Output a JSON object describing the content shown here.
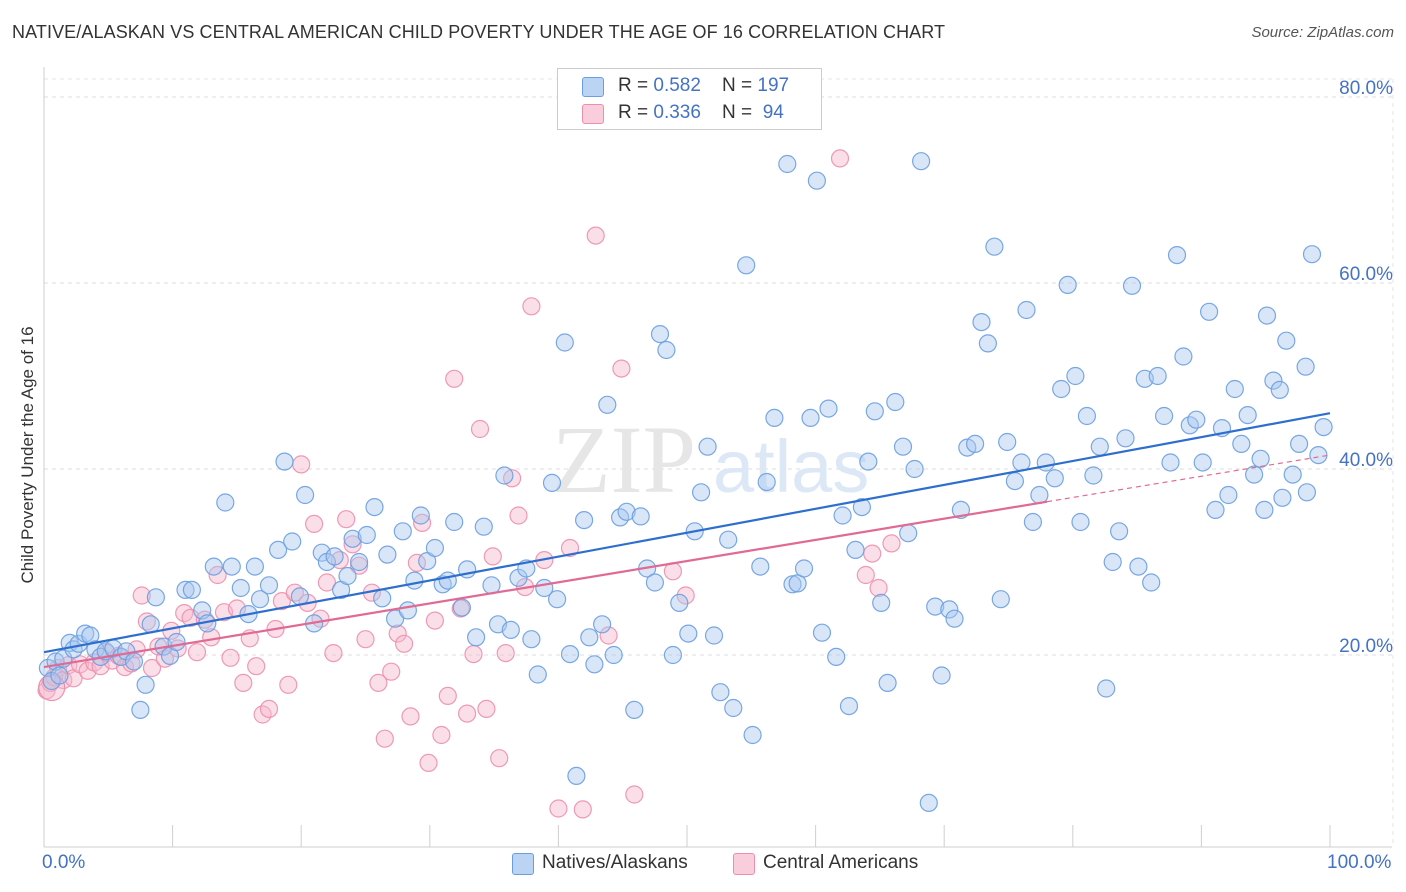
{
  "header": {
    "title": "NATIVE/ALASKAN VS CENTRAL AMERICAN CHILD POVERTY UNDER THE AGE OF 16 CORRELATION CHART",
    "source": "Source: ZipAtlas.com"
  },
  "watermark": {
    "text_zip": "ZIP",
    "text_atlas": "atlas"
  },
  "legend": {
    "rows": [
      {
        "r_label": "R = ",
        "r_value": "0.582",
        "n_label": "N = ",
        "n_value": "197",
        "color": "#a9c8f0"
      },
      {
        "r_label": "R = ",
        "r_value": "0.336",
        "n_label": "N = ",
        "n_value": " 94",
        "color": "#f6b8cb"
      }
    ]
  },
  "bottom_legend": [
    {
      "label": "Natives/Alaskans",
      "color": "#a9c8f0"
    },
    {
      "label": "Central Americans",
      "color": "#f6b8cb"
    }
  ],
  "colors": {
    "blue_line": "#2e6fce",
    "pink_line": "#e06a94",
    "blue_fill": "#a9c8f0",
    "pink_fill": "#f6b8cb",
    "blue_stroke": "#6a9ee0",
    "pink_stroke": "#ec8fae",
    "tick_label": "#4472c4"
  },
  "chart_data": {
    "type": "scatter",
    "title": "NATIVE/ALASKAN VS CENTRAL AMERICAN CHILD POVERTY UNDER THE AGE OF 16 CORRELATION CHART",
    "xlabel": "",
    "ylabel": "Child Poverty Under the Age of 16",
    "xlim": [
      0,
      100
    ],
    "ylim": [
      0,
      85
    ],
    "x_tick_labels": [
      "0.0%",
      "100.0%"
    ],
    "y_ticks": [
      20,
      40,
      60,
      80
    ],
    "y_tick_labels": [
      "20.0%",
      "40.0%",
      "60.0%",
      "80.0%"
    ],
    "grid": true,
    "legend_position": "top-center",
    "series": [
      {
        "name": "Natives/Alaskans",
        "trend": {
          "x": [
            0,
            100
          ],
          "y": [
            20.3,
            46.0
          ],
          "extrapolated_to": 100
        },
        "points": [
          [
            0.3,
            18.6
          ],
          [
            0.6,
            17.2
          ],
          [
            0.9,
            19.3
          ],
          [
            1.2,
            17.8
          ],
          [
            1.5,
            19.6
          ],
          [
            2.0,
            21.3
          ],
          [
            2.3,
            20.6
          ],
          [
            2.7,
            21.2
          ],
          [
            3.2,
            22.3
          ],
          [
            3.6,
            22.1
          ],
          [
            4.0,
            20.6
          ],
          [
            4.4,
            19.8
          ],
          [
            4.8,
            20.4
          ],
          [
            5.4,
            20.7
          ],
          [
            6.0,
            19.8
          ],
          [
            6.4,
            20.4
          ],
          [
            7.0,
            19.3
          ],
          [
            7.5,
            14.1
          ],
          [
            7.9,
            16.8
          ],
          [
            8.3,
            23.3
          ],
          [
            8.7,
            26.2
          ],
          [
            9.3,
            20.9
          ],
          [
            9.8,
            19.9
          ],
          [
            10.3,
            21.4
          ],
          [
            11.0,
            27.0
          ],
          [
            11.5,
            27.0
          ],
          [
            12.3,
            24.8
          ],
          [
            12.7,
            23.4
          ],
          [
            13.2,
            29.5
          ],
          [
            14.1,
            36.4
          ],
          [
            14.6,
            29.5
          ],
          [
            15.3,
            27.2
          ],
          [
            15.9,
            24.4
          ],
          [
            16.4,
            29.5
          ],
          [
            16.8,
            26.0
          ],
          [
            17.5,
            27.5
          ],
          [
            18.2,
            31.3
          ],
          [
            18.7,
            40.8
          ],
          [
            19.3,
            32.2
          ],
          [
            19.9,
            26.3
          ],
          [
            20.3,
            37.2
          ],
          [
            21.0,
            23.4
          ],
          [
            21.6,
            31.0
          ],
          [
            22.0,
            30.0
          ],
          [
            22.6,
            30.6
          ],
          [
            23.1,
            27.0
          ],
          [
            23.6,
            28.5
          ],
          [
            24.0,
            32.5
          ],
          [
            24.5,
            30.0
          ],
          [
            25.1,
            32.9
          ],
          [
            25.7,
            35.9
          ],
          [
            26.3,
            26.1
          ],
          [
            26.7,
            30.8
          ],
          [
            27.3,
            23.9
          ],
          [
            27.9,
            33.3
          ],
          [
            28.3,
            24.8
          ],
          [
            28.8,
            28.0
          ],
          [
            29.3,
            35.0
          ],
          [
            29.8,
            30.1
          ],
          [
            30.4,
            31.5
          ],
          [
            31.0,
            27.6
          ],
          [
            31.4,
            28.0
          ],
          [
            31.9,
            34.3
          ],
          [
            32.5,
            25.1
          ],
          [
            32.9,
            29.2
          ],
          [
            33.6,
            21.9
          ],
          [
            34.2,
            33.8
          ],
          [
            34.8,
            27.5
          ],
          [
            35.3,
            23.3
          ],
          [
            35.8,
            39.3
          ],
          [
            36.3,
            22.7
          ],
          [
            36.9,
            28.3
          ],
          [
            37.5,
            29.3
          ],
          [
            37.9,
            21.7
          ],
          [
            38.4,
            17.9
          ],
          [
            38.9,
            27.2
          ],
          [
            39.5,
            38.5
          ],
          [
            39.9,
            26.0
          ],
          [
            40.5,
            53.6
          ],
          [
            40.9,
            20.1
          ],
          [
            41.4,
            7.0
          ],
          [
            42.0,
            34.5
          ],
          [
            42.4,
            21.9
          ],
          [
            42.8,
            19.0
          ],
          [
            43.4,
            23.3
          ],
          [
            43.8,
            46.9
          ],
          [
            44.3,
            20.0
          ],
          [
            44.8,
            34.8
          ],
          [
            45.3,
            35.4
          ],
          [
            45.9,
            14.1
          ],
          [
            46.4,
            34.9
          ],
          [
            46.9,
            29.3
          ],
          [
            47.5,
            27.8
          ],
          [
            47.9,
            54.5
          ],
          [
            48.4,
            52.8
          ],
          [
            48.9,
            20.0
          ],
          [
            49.4,
            25.6
          ],
          [
            50.1,
            22.3
          ],
          [
            50.6,
            33.3
          ],
          [
            51.1,
            37.5
          ],
          [
            51.6,
            42.4
          ],
          [
            52.1,
            22.1
          ],
          [
            52.6,
            16.0
          ],
          [
            53.2,
            32.4
          ],
          [
            53.6,
            14.3
          ],
          [
            54.6,
            61.9
          ],
          [
            55.1,
            11.4
          ],
          [
            55.7,
            29.5
          ],
          [
            56.2,
            38.6
          ],
          [
            56.8,
            45.5
          ],
          [
            57.8,
            72.8
          ],
          [
            58.2,
            27.6
          ],
          [
            58.6,
            27.7
          ],
          [
            59.1,
            29.3
          ],
          [
            59.6,
            45.5
          ],
          [
            60.1,
            71.0
          ],
          [
            60.5,
            22.4
          ],
          [
            61.0,
            46.5
          ],
          [
            61.6,
            19.8
          ],
          [
            62.1,
            35.0
          ],
          [
            62.6,
            14.5
          ],
          [
            63.1,
            31.3
          ],
          [
            63.6,
            35.9
          ],
          [
            64.1,
            40.8
          ],
          [
            64.6,
            46.2
          ],
          [
            65.1,
            25.6
          ],
          [
            65.6,
            17.0
          ],
          [
            66.2,
            47.2
          ],
          [
            66.8,
            42.4
          ],
          [
            67.2,
            33.1
          ],
          [
            67.7,
            40.0
          ],
          [
            68.2,
            73.1
          ],
          [
            68.8,
            4.1
          ],
          [
            69.3,
            25.2
          ],
          [
            69.8,
            17.8
          ],
          [
            70.4,
            24.9
          ],
          [
            70.8,
            23.9
          ],
          [
            71.3,
            35.6
          ],
          [
            71.8,
            42.3
          ],
          [
            72.4,
            42.7
          ],
          [
            72.9,
            55.8
          ],
          [
            73.4,
            53.5
          ],
          [
            73.9,
            63.9
          ],
          [
            74.4,
            26.0
          ],
          [
            74.9,
            42.9
          ],
          [
            75.5,
            38.7
          ],
          [
            76.0,
            40.7
          ],
          [
            76.4,
            57.1
          ],
          [
            76.9,
            34.3
          ],
          [
            77.4,
            37.2
          ],
          [
            77.9,
            40.7
          ],
          [
            78.6,
            39.0
          ],
          [
            79.1,
            48.6
          ],
          [
            79.6,
            59.8
          ],
          [
            80.2,
            50.0
          ],
          [
            80.6,
            34.3
          ],
          [
            81.1,
            45.7
          ],
          [
            81.6,
            39.3
          ],
          [
            82.1,
            42.4
          ],
          [
            82.6,
            16.4
          ],
          [
            83.1,
            30.0
          ],
          [
            83.6,
            33.3
          ],
          [
            84.1,
            43.3
          ],
          [
            84.6,
            59.7
          ],
          [
            85.1,
            29.5
          ],
          [
            85.6,
            49.7
          ],
          [
            86.1,
            27.8
          ],
          [
            86.6,
            50.0
          ],
          [
            87.1,
            45.7
          ],
          [
            87.6,
            40.7
          ],
          [
            88.1,
            63.0
          ],
          [
            88.6,
            52.1
          ],
          [
            89.1,
            44.7
          ],
          [
            89.6,
            45.3
          ],
          [
            90.1,
            40.7
          ],
          [
            90.6,
            56.9
          ],
          [
            91.1,
            35.6
          ],
          [
            91.6,
            44.4
          ],
          [
            92.1,
            37.2
          ],
          [
            92.6,
            48.6
          ],
          [
            93.1,
            42.7
          ],
          [
            93.6,
            45.8
          ],
          [
            94.1,
            39.4
          ],
          [
            94.6,
            41.1
          ],
          [
            95.1,
            56.5
          ],
          [
            95.6,
            49.5
          ],
          [
            96.1,
            48.5
          ],
          [
            96.6,
            53.8
          ],
          [
            97.1,
            39.4
          ],
          [
            97.6,
            42.7
          ],
          [
            98.1,
            51.0
          ],
          [
            98.6,
            63.1
          ],
          [
            99.1,
            41.5
          ],
          [
            99.5,
            44.5
          ],
          [
            98.2,
            37.5
          ],
          [
            96.3,
            36.9
          ],
          [
            94.9,
            35.6
          ]
        ]
      },
      {
        "name": "Central Americans",
        "trend": {
          "x": [
            0,
            100
          ],
          "y": [
            18.7,
            41.5
          ],
          "solid_until": 78
        },
        "points": [
          [
            0.2,
            16.2
          ],
          [
            0.5,
            17.0
          ],
          [
            0.8,
            17.6
          ],
          [
            1.1,
            18.6
          ],
          [
            1.5,
            17.3
          ],
          [
            1.9,
            18.9
          ],
          [
            2.3,
            17.5
          ],
          [
            2.8,
            19.0
          ],
          [
            3.4,
            18.3
          ],
          [
            3.9,
            19.2
          ],
          [
            4.4,
            18.8
          ],
          [
            4.9,
            20.2
          ],
          [
            5.3,
            19.4
          ],
          [
            5.8,
            19.9
          ],
          [
            6.3,
            18.7
          ],
          [
            6.8,
            19.1
          ],
          [
            7.2,
            20.6
          ],
          [
            7.6,
            26.4
          ],
          [
            8.0,
            23.6
          ],
          [
            8.4,
            18.6
          ],
          [
            8.9,
            20.9
          ],
          [
            9.4,
            19.6
          ],
          [
            9.9,
            22.6
          ],
          [
            10.4,
            20.7
          ],
          [
            10.9,
            24.5
          ],
          [
            11.4,
            24.0
          ],
          [
            11.9,
            20.3
          ],
          [
            12.5,
            23.8
          ],
          [
            13.0,
            21.9
          ],
          [
            13.5,
            28.6
          ],
          [
            14.0,
            24.6
          ],
          [
            14.5,
            19.7
          ],
          [
            15.0,
            25.0
          ],
          [
            15.5,
            17.0
          ],
          [
            16.0,
            21.8
          ],
          [
            16.5,
            18.8
          ],
          [
            17.0,
            13.6
          ],
          [
            17.5,
            14.2
          ],
          [
            18.0,
            22.8
          ],
          [
            18.5,
            25.8
          ],
          [
            19.0,
            16.8
          ],
          [
            19.5,
            26.7
          ],
          [
            20.0,
            40.5
          ],
          [
            20.5,
            25.6
          ],
          [
            21.0,
            34.1
          ],
          [
            21.5,
            23.9
          ],
          [
            22.0,
            27.8
          ],
          [
            22.5,
            20.2
          ],
          [
            23.0,
            30.2
          ],
          [
            23.5,
            34.6
          ],
          [
            24.0,
            31.9
          ],
          [
            24.5,
            29.6
          ],
          [
            25.0,
            21.7
          ],
          [
            25.5,
            26.7
          ],
          [
            26.0,
            17.0
          ],
          [
            26.5,
            11.0
          ],
          [
            27.0,
            18.2
          ],
          [
            27.5,
            22.3
          ],
          [
            28.0,
            21.2
          ],
          [
            28.5,
            13.4
          ],
          [
            29.0,
            29.9
          ],
          [
            29.4,
            34.2
          ],
          [
            29.9,
            8.4
          ],
          [
            30.4,
            23.7
          ],
          [
            30.9,
            11.4
          ],
          [
            31.4,
            15.6
          ],
          [
            31.9,
            49.7
          ],
          [
            32.4,
            25.0
          ],
          [
            32.9,
            13.7
          ],
          [
            33.4,
            20.1
          ],
          [
            33.9,
            44.3
          ],
          [
            34.4,
            14.2
          ],
          [
            34.9,
            30.6
          ],
          [
            35.4,
            8.9
          ],
          [
            35.9,
            20.2
          ],
          [
            36.4,
            39.0
          ],
          [
            36.9,
            35.0
          ],
          [
            37.4,
            27.3
          ],
          [
            37.9,
            57.5
          ],
          [
            38.9,
            30.2
          ],
          [
            40.0,
            3.5
          ],
          [
            40.9,
            31.5
          ],
          [
            41.9,
            3.4
          ],
          [
            42.9,
            65.1
          ],
          [
            43.9,
            22.1
          ],
          [
            44.9,
            50.8
          ],
          [
            45.9,
            5.0
          ],
          [
            48.9,
            29.0
          ],
          [
            49.9,
            26.4
          ],
          [
            61.9,
            73.4
          ],
          [
            63.9,
            28.6
          ],
          [
            64.9,
            27.2
          ],
          [
            65.9,
            32.0
          ],
          [
            64.4,
            30.9
          ]
        ]
      }
    ]
  }
}
